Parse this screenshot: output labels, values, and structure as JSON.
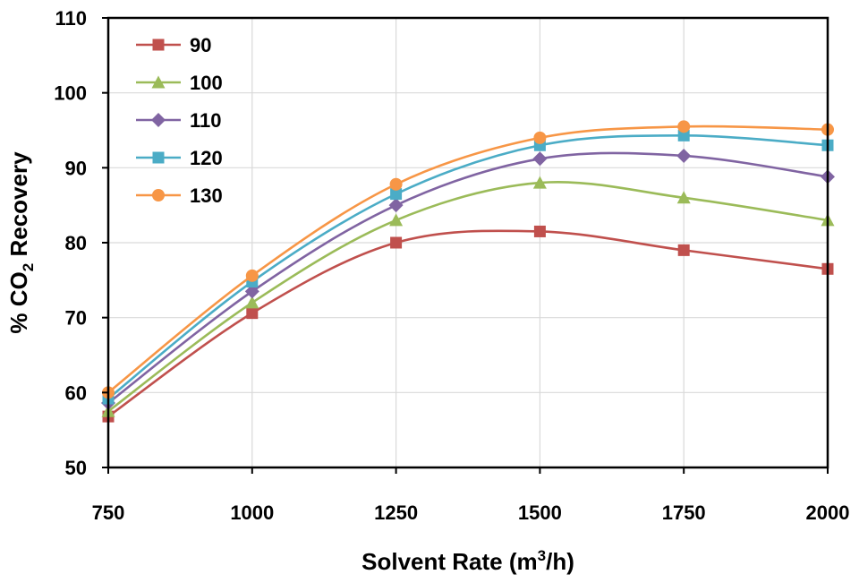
{
  "chart_data": {
    "type": "line",
    "smooth": true,
    "grid": true,
    "legend_position": "top-left",
    "xlabel_parts": {
      "main": "Solvent Rate (m",
      "sup": "3",
      "tail": "/h)"
    },
    "ylabel_parts": {
      "main": "% CO",
      "sub": "2",
      "tail": " Recovery"
    },
    "xlim": [
      750,
      2000
    ],
    "ylim": [
      50,
      110
    ],
    "x_ticks": [
      750,
      1000,
      1250,
      1500,
      1750,
      2000
    ],
    "y_ticks": [
      50,
      60,
      70,
      80,
      90,
      100,
      110
    ],
    "x": [
      750,
      1000,
      1250,
      1500,
      1750,
      2000
    ],
    "series": [
      {
        "name": "90",
        "color": "#C0504D",
        "marker": "square",
        "values": [
          56.8,
          70.6,
          80.0,
          81.5,
          79.0,
          76.5
        ]
      },
      {
        "name": "100",
        "color": "#9BBB59",
        "marker": "triangle",
        "values": [
          57.5,
          72.0,
          83.0,
          88.0,
          86.0,
          83.0
        ]
      },
      {
        "name": "110",
        "color": "#8064A2",
        "marker": "diamond",
        "values": [
          58.6,
          73.5,
          85.0,
          91.2,
          91.6,
          88.8
        ]
      },
      {
        "name": "120",
        "color": "#4BACC6",
        "marker": "square",
        "values": [
          59.2,
          74.8,
          86.5,
          93.0,
          94.3,
          93.0
        ]
      },
      {
        "name": "130",
        "color": "#F79646",
        "marker": "circle",
        "values": [
          60.0,
          75.6,
          87.8,
          94.0,
          95.5,
          95.1
        ]
      }
    ]
  }
}
